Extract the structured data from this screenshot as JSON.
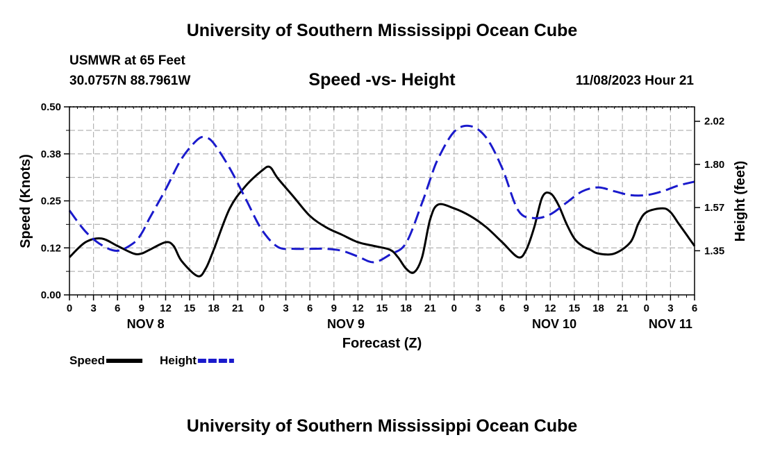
{
  "header": {
    "title": "University of Southern Mississippi Ocean Cube",
    "station": "USMWR at 65 Feet",
    "coords": "30.0757N  88.7961W",
    "datetime": "11/08/2023 Hour 21",
    "footer_title": "University of Southern Mississippi Ocean Cube"
  },
  "colors": {
    "speed": "#000000",
    "height": "#1a1acc",
    "grid": "#b4b4b4"
  },
  "chart_data": {
    "type": "line",
    "title": "Speed -vs- Height",
    "xlabel": "Forecast (Z)",
    "ylabel": "Speed (Knots)",
    "y2label": "Height (feet)",
    "xlim": [
      0,
      78
    ],
    "ylim": [
      0,
      0.5
    ],
    "y2lim": [
      1.12,
      2.1
    ],
    "yticks": [
      0,
      0.125,
      0.25,
      0.375,
      0.5
    ],
    "ytick_labels": [
      "0.00",
      "0.12",
      "0.25",
      "0.38",
      "0.50"
    ],
    "y2ticks": [
      1.35,
      1.575,
      1.8,
      2.025
    ],
    "y2tick_labels": [
      "1.35",
      "1.57",
      "1.80",
      "2.02"
    ],
    "xtick_labels": [
      "0",
      "3",
      "6",
      "9",
      "12",
      "15",
      "18",
      "21",
      "0",
      "3",
      "6",
      "9",
      "12",
      "15",
      "18",
      "21",
      "0",
      "3",
      "6",
      "9",
      "12",
      "15",
      "18",
      "21",
      "0",
      "3",
      "6"
    ],
    "date_labels": [
      {
        "label": "NOV 8",
        "hour": 9.5
      },
      {
        "label": "NOV 9",
        "hour": 34.5
      },
      {
        "label": "NOV 10",
        "hour": 60.5
      },
      {
        "label": "NOV 11",
        "hour": 75
      }
    ],
    "grid": true,
    "series": [
      {
        "name": "Speed",
        "axis": "left",
        "style": "solid",
        "x": [
          0,
          2,
          4,
          6,
          8,
          9,
          10,
          12,
          13,
          14,
          16,
          17,
          18,
          20,
          22,
          24,
          25,
          26,
          28,
          30,
          32,
          34,
          36,
          38,
          40,
          41,
          42,
          43,
          44,
          45,
          46,
          48,
          50,
          52,
          54,
          56,
          57,
          58,
          59,
          60,
          61,
          62,
          63,
          64,
          65,
          66,
          68,
          70,
          71,
          72,
          74,
          75,
          76,
          77,
          78
        ],
        "values": [
          0.1,
          0.14,
          0.15,
          0.13,
          0.11,
          0.11,
          0.12,
          0.14,
          0.13,
          0.09,
          0.05,
          0.07,
          0.12,
          0.23,
          0.29,
          0.33,
          0.34,
          0.31,
          0.26,
          0.21,
          0.18,
          0.16,
          0.14,
          0.13,
          0.12,
          0.1,
          0.07,
          0.06,
          0.1,
          0.2,
          0.24,
          0.23,
          0.21,
          0.18,
          0.14,
          0.1,
          0.12,
          0.18,
          0.26,
          0.27,
          0.24,
          0.19,
          0.15,
          0.13,
          0.12,
          0.11,
          0.11,
          0.14,
          0.19,
          0.22,
          0.23,
          0.22,
          0.19,
          0.16,
          0.13
        ]
      },
      {
        "name": "Height",
        "axis": "right",
        "style": "dashed",
        "x": [
          0,
          2,
          4,
          6,
          8,
          9,
          10,
          12,
          14,
          16,
          17,
          18,
          20,
          22,
          24,
          26,
          28,
          30,
          32,
          34,
          36,
          38,
          40,
          42,
          44,
          45,
          46,
          48,
          50,
          52,
          54,
          56,
          58,
          60,
          62,
          64,
          66,
          68,
          70,
          72,
          74,
          76,
          78
        ],
        "values": [
          1.56,
          1.45,
          1.38,
          1.35,
          1.39,
          1.44,
          1.52,
          1.67,
          1.83,
          1.93,
          1.94,
          1.91,
          1.78,
          1.62,
          1.46,
          1.37,
          1.36,
          1.36,
          1.36,
          1.35,
          1.32,
          1.29,
          1.33,
          1.39,
          1.6,
          1.72,
          1.83,
          1.97,
          2.0,
          1.94,
          1.78,
          1.56,
          1.52,
          1.54,
          1.6,
          1.66,
          1.68,
          1.66,
          1.64,
          1.64,
          1.66,
          1.69,
          1.71
        ]
      }
    ],
    "legend": [
      {
        "label": "Speed",
        "style": "solid"
      },
      {
        "label": "Height",
        "style": "dashed"
      }
    ]
  }
}
